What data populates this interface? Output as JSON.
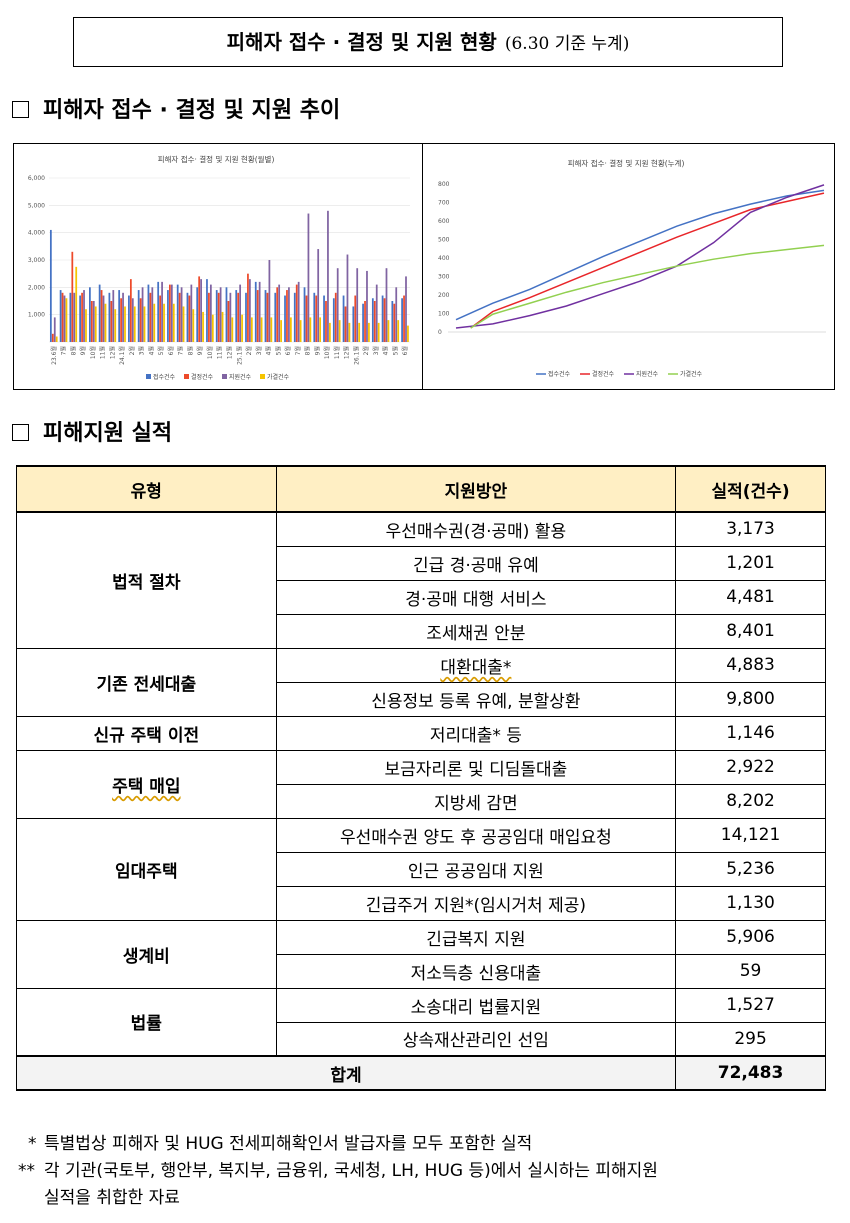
{
  "header": {
    "title": "피해자 접수 · 결정 및 지원 현황",
    "subtitle": "(6.30 기준 누계)"
  },
  "section1": {
    "title": "피해자 접수 · 결정 및 지원 추이"
  },
  "section2": {
    "title": "피해지원 실적"
  },
  "chart_data": [
    {
      "type": "bar",
      "title": "피해자 접수· 결정 및 지원 현황(월별)",
      "ylim": [
        0,
        6000
      ],
      "yticks": [
        "6,000",
        "5,000",
        "4,000",
        "3,000",
        "2,000",
        "1,000",
        ""
      ],
      "categories": [
        "23.6월",
        "7월",
        "8월",
        "9월",
        "10월",
        "11월",
        "12월",
        "24.1월",
        "2월",
        "3월",
        "4월",
        "5월",
        "6월",
        "7월",
        "8월",
        "9월",
        "10월",
        "11월",
        "12월",
        "25.1월",
        "2월",
        "3월",
        "4월",
        "5월",
        "6월",
        "7월",
        "8월",
        "9월",
        "10월",
        "11월",
        "12월",
        "26.1월",
        "2월",
        "3월",
        "4월",
        "5월",
        "6월"
      ],
      "series": [
        {
          "name": "접수건수",
          "color": "#4472c4",
          "values": [
            4100,
            1900,
            1800,
            1700,
            2000,
            2100,
            1800,
            1900,
            1700,
            1900,
            2100,
            2200,
            1900,
            2100,
            1800,
            2000,
            2300,
            1900,
            2000,
            1900,
            1800,
            2200,
            1900,
            1800,
            1700,
            1800,
            2000,
            1800,
            1700,
            1600,
            1700,
            1300,
            1400,
            1600,
            1700,
            1500,
            1600
          ]
        },
        {
          "name": "결정건수",
          "color": "#ed4a2a",
          "values": [
            300,
            1800,
            3300,
            1800,
            1500,
            1900,
            1500,
            1600,
            2300,
            1600,
            1800,
            1700,
            2100,
            1800,
            1700,
            2400,
            1800,
            1800,
            1500,
            1800,
            2500,
            1900,
            1800,
            2000,
            1900,
            2100,
            1700,
            1700,
            1500,
            1800,
            1300,
            1700,
            1500,
            1500,
            1600,
            1400,
            1700
          ]
        },
        {
          "name": "지원건수",
          "color": "#8064a2",
          "values": [
            900,
            1700,
            1800,
            1900,
            1500,
            1700,
            1900,
            1800,
            1600,
            2000,
            2000,
            2200,
            2100,
            2000,
            2100,
            2300,
            2100,
            2000,
            1800,
            2100,
            2300,
            2200,
            3000,
            2100,
            2000,
            2200,
            4700,
            3400,
            4800,
            2700,
            3200,
            2700,
            2600,
            2100,
            2700,
            2000,
            2400
          ]
        },
        {
          "name": "가결건수",
          "color": "#f5c400",
          "values": [
            200,
            1600,
            2750,
            1200,
            1300,
            1400,
            1200,
            1300,
            1300,
            1300,
            1400,
            1400,
            1400,
            1300,
            1200,
            1100,
            1000,
            1100,
            900,
            1000,
            900,
            900,
            900,
            800,
            900,
            800,
            900,
            900,
            700,
            800,
            700,
            700,
            700,
            700,
            800,
            800,
            600
          ]
        }
      ]
    },
    {
      "type": "line",
      "title": "피해자 접수· 결정 및 지원 현황(누계)",
      "yticks": [
        "800",
        "700",
        "600",
        "500",
        "400",
        "300",
        "200",
        "100",
        "0"
      ],
      "series": [
        {
          "name": "접수건수",
          "color": "#4472c4"
        },
        {
          "name": "결정건수",
          "color": "#e8262a"
        },
        {
          "name": "지원건수",
          "color": "#7030a0"
        },
        {
          "name": "가결건수",
          "color": "#92d050"
        }
      ]
    }
  ],
  "table": {
    "headers": [
      "유형",
      "지원방안",
      "실적(건수)"
    ],
    "groups": [
      {
        "name": "법적 절차",
        "rows": [
          {
            "plan": "우선매수권(경·공매) 활용",
            "count": "3,173"
          },
          {
            "plan": "긴급 경·공매 유예",
            "count": "1,201"
          },
          {
            "plan": "경·공매 대행 서비스",
            "count": "4,481"
          },
          {
            "plan": "조세채권 안분",
            "count": "8,401"
          }
        ]
      },
      {
        "name": "기존 전세대출",
        "rows": [
          {
            "plan": "대환대출*",
            "count": "4,883"
          },
          {
            "plan": "신용정보 등록 유예, 분할상환",
            "count": "9,800"
          }
        ]
      },
      {
        "name": "신규 주택 이전",
        "rows": [
          {
            "plan": "저리대출* 등",
            "count": "1,146"
          }
        ]
      },
      {
        "name": "주택 매입",
        "rows": [
          {
            "plan": "보금자리론 및 디딤돌대출",
            "count": "2,922"
          },
          {
            "plan": "지방세 감면",
            "count": "8,202"
          }
        ]
      },
      {
        "name": "임대주택",
        "rows": [
          {
            "plan": "우선매수권 양도 후 공공임대 매입요청",
            "count": "14,121"
          },
          {
            "plan": "인근 공공임대 지원",
            "count": "5,236"
          },
          {
            "plan": "긴급주거 지원*(임시거처 제공)",
            "count": "1,130"
          }
        ]
      },
      {
        "name": "생계비",
        "rows": [
          {
            "plan": "긴급복지 지원",
            "count": "5,906"
          },
          {
            "plan": "저소득층 신용대출",
            "count": "59"
          }
        ]
      },
      {
        "name": "법률",
        "rows": [
          {
            "plan": "소송대리 법률지원",
            "count": "1,527"
          },
          {
            "plan": "상속재산관리인 선임",
            "count": "295"
          }
        ]
      }
    ],
    "total": {
      "label": "합계",
      "count": "72,483"
    }
  },
  "notes": [
    {
      "mark": "*",
      "text": "특별법상 피해자 및 HUG 전세피해확인서 발급자를 모두 포함한 실적"
    },
    {
      "mark": "**",
      "text": "각 기관(국토부, 행안부, 복지부, 금융위, 국세청, LH, HUG 등)에서 실시하는 피해지원"
    },
    {
      "mark": "",
      "text": "실적을 취합한 자료"
    }
  ]
}
